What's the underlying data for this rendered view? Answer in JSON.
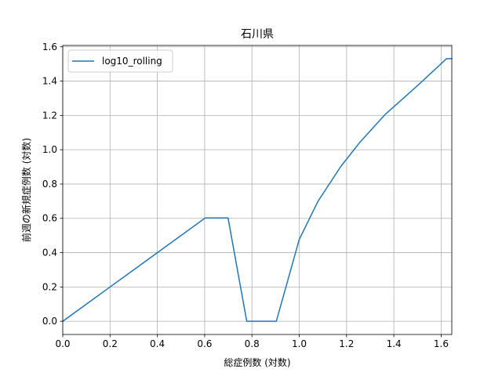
{
  "chart_data": {
    "type": "line",
    "title": "石川県",
    "xlabel": "総症例数 (対数)",
    "ylabel": "前週の新規症例数 (対数)",
    "xlim": [
      0.0,
      1.645
    ],
    "ylim": [
      -0.077,
      1.608
    ],
    "xticks": [
      0.0,
      0.2,
      0.4,
      0.6,
      0.8,
      1.0,
      1.2,
      1.4,
      1.6
    ],
    "yticks": [
      0.0,
      0.2,
      0.4,
      0.6,
      0.8,
      1.0,
      1.2,
      1.4,
      1.6
    ],
    "xtick_labels": [
      "0.0",
      "0.2",
      "0.4",
      "0.6",
      "0.8",
      "1.0",
      "1.2",
      "1.4",
      "1.6"
    ],
    "ytick_labels": [
      "0.0",
      "0.2",
      "0.4",
      "0.6",
      "0.8",
      "1.0",
      "1.2",
      "1.4",
      "1.6"
    ],
    "grid": true,
    "legend_position": "top-left",
    "series": [
      {
        "name": "log10_rolling",
        "color": "#1f77b4",
        "x": [
          0.0,
          0.301,
          0.602,
          0.699,
          0.778,
          0.845,
          0.903,
          1.0,
          1.079,
          1.176,
          1.255,
          1.362,
          1.505,
          1.623,
          1.645
        ],
        "y": [
          0.0,
          0.301,
          0.602,
          0.602,
          0.0,
          0.0,
          0.0,
          0.477,
          0.699,
          0.903,
          1.041,
          1.204,
          1.38,
          1.531,
          1.531
        ]
      }
    ]
  }
}
